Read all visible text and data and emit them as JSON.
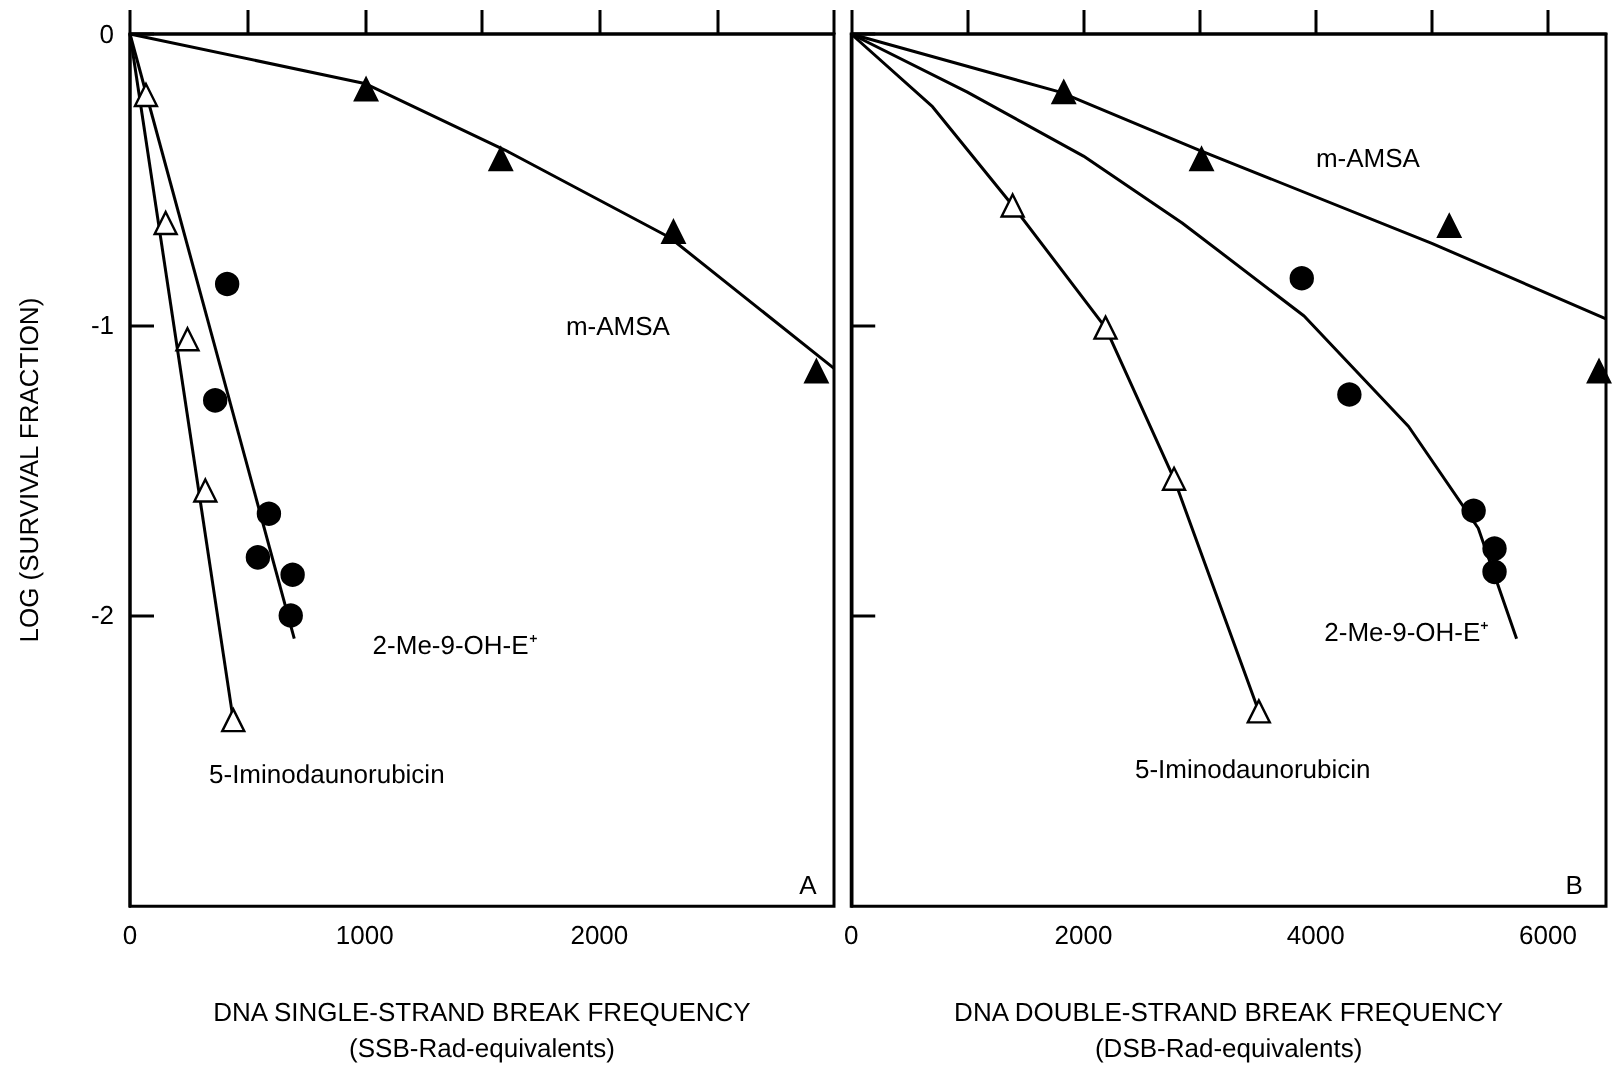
{
  "chart_data": [
    {
      "type": "scatter",
      "xlabel": "DNA SINGLE-STRAND BREAK FREQUENCY\n(SSB-Rad-equivalents)",
      "ylabel": "LOG (SURVIVAL FRACTION)",
      "xlim": [
        0,
        3000
      ],
      "ylim": [
        -3,
        0
      ],
      "xticks": [
        0,
        {
          "value": 500,
          "label": null
        },
        1000,
        {
          "value": 1500,
          "label": null
        },
        2000,
        {
          "value": 2500,
          "label": null
        },
        {
          "value": 3000,
          "label": null
        }
      ],
      "yticks": [
        0,
        -1,
        -2
      ],
      "grid": false,
      "series": [
        {
          "marker": "triangle",
          "color": "#000000",
          "x": [
            1006,
            1580,
            2316,
            2925
          ],
          "values": [
            -0.19,
            -0.43,
            -0.68,
            -1.16
          ]
        },
        {
          "type": "line",
          "marker": "none",
          "color": "#000000",
          "x": [
            0,
            1000,
            1600,
            2300,
            3000
          ],
          "values": [
            0,
            -0.17,
            -0.4,
            -0.7,
            -1.15
          ]
        },
        {
          "marker": "circle",
          "color": "#000000",
          "x": [
            414,
            363,
            592,
            545,
            693,
            685
          ],
          "values": [
            -0.86,
            -1.26,
            -1.65,
            -1.8,
            -1.86,
            -2.0
          ]
        },
        {
          "type": "line",
          "marker": "none",
          "color": "#000000",
          "x": [
            0,
            700
          ],
          "values": [
            0,
            -2.08
          ]
        },
        {
          "marker": "triangle",
          "color": "#ffffff",
          "x": [
            68,
            152,
            245,
            321,
            440
          ],
          "values": [
            -0.21,
            -0.65,
            -1.05,
            -1.57,
            -2.36
          ]
        },
        {
          "type": "line",
          "marker": "none",
          "color": "#000000",
          "x": [
            0,
            440
          ],
          "values": [
            0,
            -2.36
          ]
        }
      ],
      "annotations": [
        "m-AMSA",
        "2-Me-9-OH-E⁺",
        "5-Iminodaunorubicin",
        "A"
      ]
    },
    {
      "type": "scatter",
      "xlabel": "DNA DOUBLE-STRAND BREAK FREQUENCY\n(DSB-Rad-equivalents)",
      "xlim": [
        0,
        6500
      ],
      "ylim": [
        -3,
        0
      ],
      "xticks": [
        0,
        {
          "value": 1000,
          "label": null
        },
        2000,
        {
          "value": 3000,
          "label": null
        },
        4000,
        {
          "value": 5000,
          "label": null
        },
        6000
      ],
      "yticks": [
        0,
        -1,
        -2
      ],
      "tick_labels": "x",
      "grid": false,
      "series": [
        {
          "marker": "triangle",
          "color": "#000000",
          "x": [
            1830,
            3017,
            5150,
            6440
          ],
          "values": [
            -0.2,
            -0.43,
            -0.66,
            -1.16
          ]
        },
        {
          "type": "line",
          "marker": "none",
          "color": "#000000",
          "x": [
            0,
            1800,
            3000,
            5000,
            6500
          ],
          "values": [
            0,
            -0.2,
            -0.4,
            -0.72,
            -0.98
          ]
        },
        {
          "marker": "circle",
          "color": "#000000",
          "x": [
            3880,
            4290,
            5360,
            5540,
            5540
          ],
          "values": [
            -0.84,
            -1.24,
            -1.64,
            -1.77,
            -1.85
          ]
        },
        {
          "type": "line",
          "marker": "none",
          "color": "#000000",
          "x": [
            0,
            1000,
            2000,
            2850,
            3900,
            4800,
            5400,
            5730
          ],
          "values": [
            0,
            -0.2,
            -0.42,
            -0.65,
            -0.97,
            -1.35,
            -1.7,
            -2.08
          ]
        },
        {
          "marker": "triangle",
          "color": "#ffffff",
          "x": [
            1390,
            2190,
            2780,
            3510
          ],
          "values": [
            -0.59,
            -1.01,
            -1.53,
            -2.33
          ]
        },
        {
          "type": "line",
          "marker": "none",
          "color": "#000000",
          "x": [
            0,
            700,
            1390,
            2190,
            2780,
            3510
          ],
          "values": [
            0,
            -0.25,
            -0.59,
            -1.01,
            -1.53,
            -2.33
          ]
        }
      ],
      "annotations": [
        "m-AMSA",
        "2-Me-9-OH-E⁺",
        "5-Iminodaunorubicin",
        "B"
      ]
    }
  ]
}
